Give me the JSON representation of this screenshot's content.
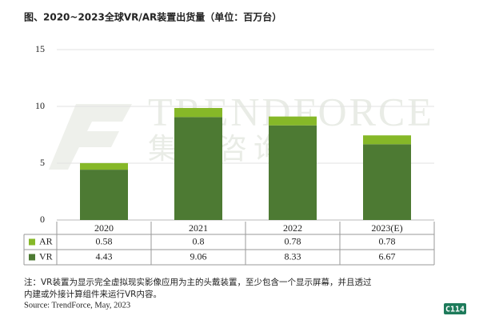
{
  "chart_data": {
    "type": "bar",
    "stacked": true,
    "title": "图、2020~2023全球VR/AR装置出货量（单位：百万台）",
    "categories": [
      "2020",
      "2021",
      "2022",
      "2023(E)"
    ],
    "series": [
      {
        "name": "AR",
        "color": "#86b828",
        "values": [
          0.58,
          0.8,
          0.78,
          0.78
        ]
      },
      {
        "name": "VR",
        "color": "#4d7a33",
        "values": [
          4.43,
          9.06,
          8.33,
          6.67
        ]
      }
    ],
    "ylim": [
      0,
      15
    ],
    "yticks": [
      0,
      5,
      10,
      15
    ],
    "grid": true,
    "watermark": [
      "TRENDFORCE",
      "集邦咨询"
    ],
    "notes": [
      "注：VR装置为显示完全虚拟现实影像应用为主的头戴装置，至少包含一个显示屏幕，并且透过",
      "内建或外接计算组件来运行VR内容。"
    ],
    "source": "Source: TrendForce, May, 2023",
    "badge": "C114"
  }
}
